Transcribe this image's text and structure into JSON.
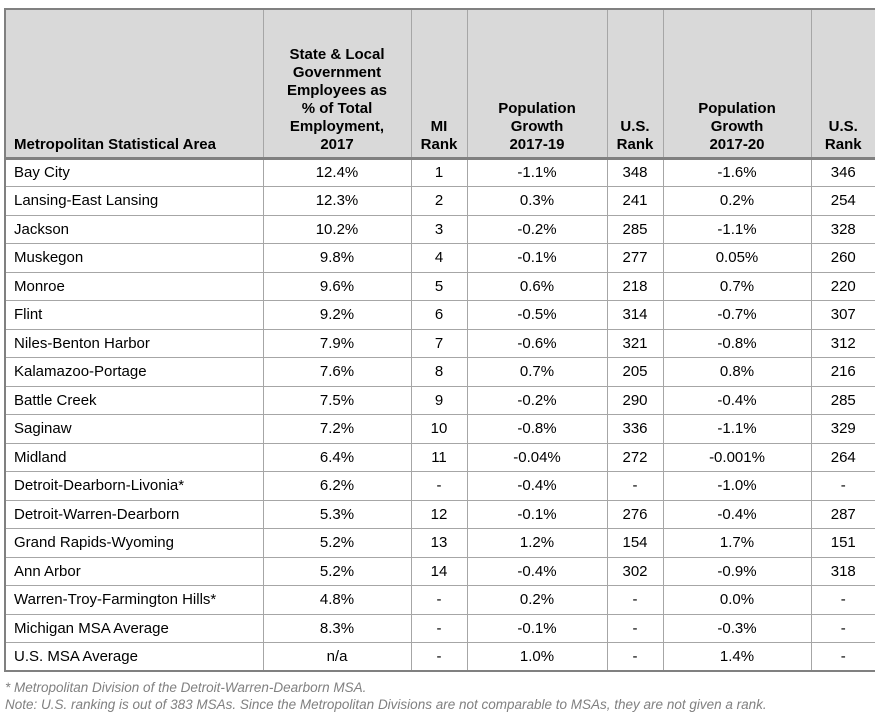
{
  "chart_data": {
    "type": "table",
    "columns": [
      "Metropolitan Statistical Area",
      "State & Local Government Employees as % of Total Employment, 2017",
      "MI Rank",
      "Population Growth 2017-19",
      "U.S. Rank",
      "Population Growth 2017-20",
      "U.S. Rank"
    ],
    "rows": [
      [
        "Bay City",
        "12.4%",
        "1",
        "-1.1%",
        "348",
        "-1.6%",
        "346"
      ],
      [
        "Lansing-East Lansing",
        "12.3%",
        "2",
        "0.3%",
        "241",
        "0.2%",
        "254"
      ],
      [
        "Jackson",
        "10.2%",
        "3",
        "-0.2%",
        "285",
        "-1.1%",
        "328"
      ],
      [
        "Muskegon",
        "9.8%",
        "4",
        "-0.1%",
        "277",
        "0.05%",
        "260"
      ],
      [
        "Monroe",
        "9.6%",
        "5",
        "0.6%",
        "218",
        "0.7%",
        "220"
      ],
      [
        "Flint",
        "9.2%",
        "6",
        "-0.5%",
        "314",
        "-0.7%",
        "307"
      ],
      [
        "Niles-Benton Harbor",
        "7.9%",
        "7",
        "-0.6%",
        "321",
        "-0.8%",
        "312"
      ],
      [
        "Kalamazoo-Portage",
        "7.6%",
        "8",
        "0.7%",
        "205",
        "0.8%",
        "216"
      ],
      [
        "Battle Creek",
        "7.5%",
        "9",
        "-0.2%",
        "290",
        "-0.4%",
        "285"
      ],
      [
        "Saginaw",
        "7.2%",
        "10",
        "-0.8%",
        "336",
        "-1.1%",
        "329"
      ],
      [
        "Midland",
        "6.4%",
        "11",
        "-0.04%",
        "272",
        "-0.001%",
        "264"
      ],
      [
        "Detroit-Dearborn-Livonia*",
        "6.2%",
        "-",
        "-0.4%",
        "-",
        "-1.0%",
        "-"
      ],
      [
        "Detroit-Warren-Dearborn",
        "5.3%",
        "12",
        "-0.1%",
        "276",
        "-0.4%",
        "287"
      ],
      [
        "Grand Rapids-Wyoming",
        "5.2%",
        "13",
        "1.2%",
        "154",
        "1.7%",
        "151"
      ],
      [
        "Ann Arbor",
        "5.2%",
        "14",
        "-0.4%",
        "302",
        "-0.9%",
        "318"
      ],
      [
        "Warren-Troy-Farmington Hills*",
        "4.8%",
        "-",
        "0.2%",
        "-",
        "0.0%",
        "-"
      ],
      [
        "Michigan MSA Average",
        "8.3%",
        "-",
        "-0.1%",
        "-",
        "-0.3%",
        "-"
      ],
      [
        "U.S. MSA Average",
        "n/a",
        "-",
        "1.0%",
        "-",
        "1.4%",
        "-"
      ]
    ]
  },
  "table": {
    "header_lines": [
      "Metropolitan Statistical Area",
      "State & Local\nGovernment\nEmployees as\n% of Total\nEmployment,\n2017",
      "MI\nRank",
      "Population\nGrowth\n2017-19",
      "U.S.\nRank",
      "Population\nGrowth\n2017-20",
      "U.S.\nRank"
    ]
  },
  "footnotes": [
    "* Metropolitan Division of the Detroit-Warren-Dearborn MSA.",
    "Note: U.S. ranking is out of 383 MSAs. Since the Metropolitan Divisions are not comparable to MSAs, they are not given a rank."
  ],
  "colors": {
    "header_bg": "#d9d9d9",
    "inner_border": "#a6a6a6",
    "outer_border": "#808080",
    "footnote_text": "#808080",
    "body_text": "#000000"
  }
}
